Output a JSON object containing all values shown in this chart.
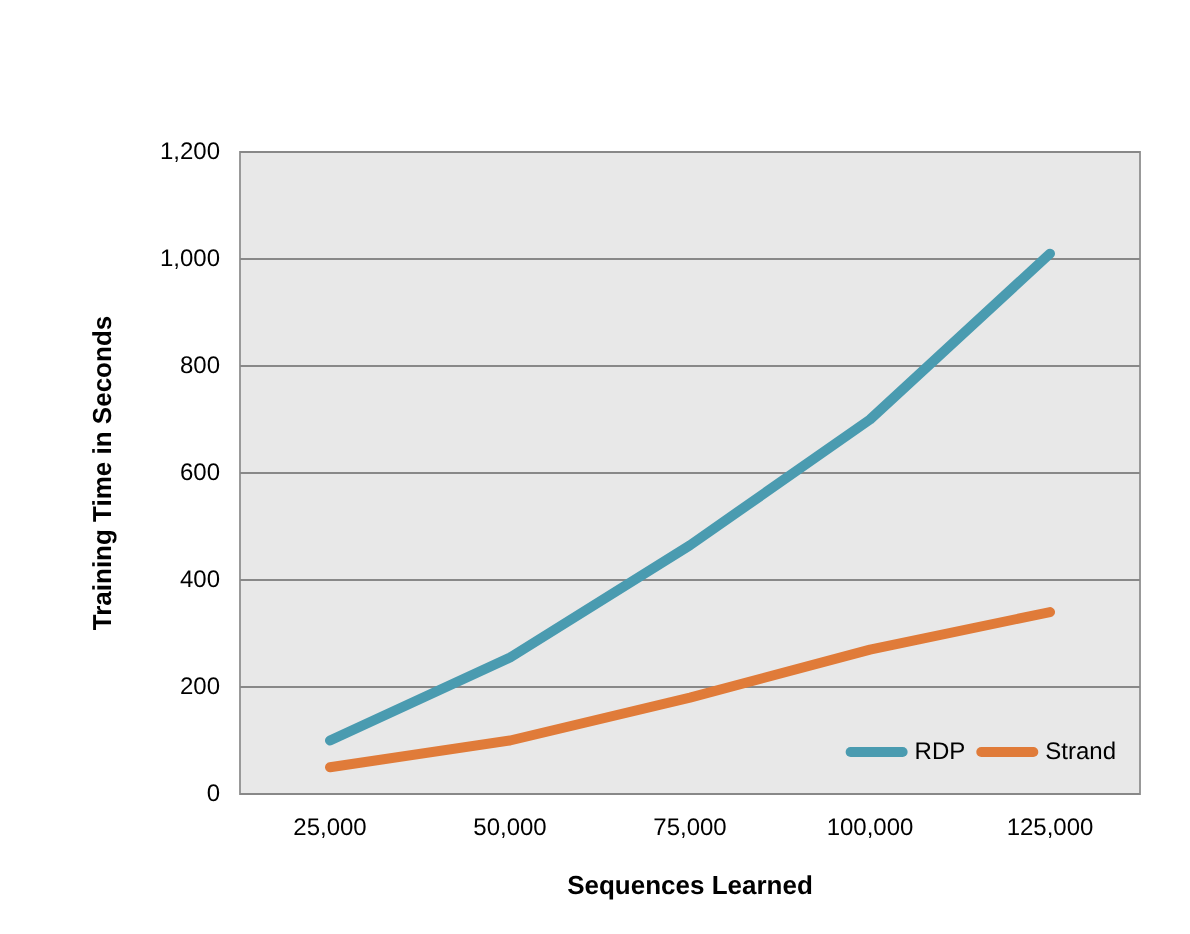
{
  "chart_data": {
    "type": "line",
    "xlabel": "Sequences Learned",
    "ylabel": "Training Time in Seconds",
    "categories": [
      "25,000",
      "50,000",
      "75,000",
      "100,000",
      "125,000"
    ],
    "series": [
      {
        "name": "RDP",
        "color": "#4a9bb0",
        "values": [
          100,
          255,
          465,
          700,
          1010
        ]
      },
      {
        "name": "Strand",
        "color": "#e07b39",
        "values": [
          50,
          100,
          180,
          270,
          340
        ]
      }
    ],
    "ylim": [
      0,
      1200
    ],
    "yticks": [
      0,
      200,
      400,
      600,
      800,
      {
        "value": 1000,
        "label": "1,000"
      },
      {
        "value": 1200,
        "label": "1,200"
      }
    ],
    "grid": "y",
    "legend": "bottom right",
    "marker": "none",
    "line_style": "solid"
  }
}
